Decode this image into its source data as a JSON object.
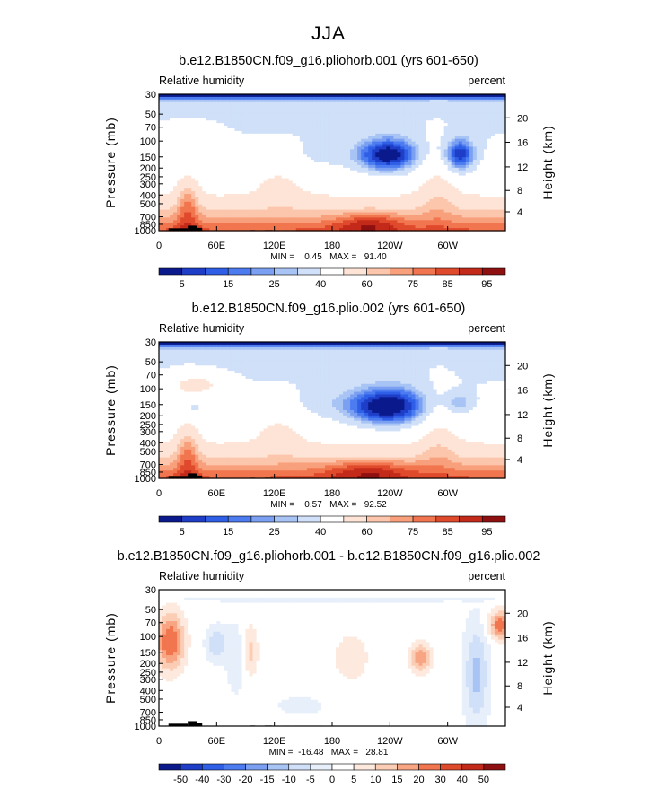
{
  "figure_title": "JJA",
  "palettes": {
    "rh": [
      "#0a1a8c",
      "#1e3ec8",
      "#2f5fe6",
      "#4c7cf0",
      "#7ba0f2",
      "#a8c4f5",
      "#cfe0f8",
      "#ffffff",
      "#fde4d6",
      "#fbc6ab",
      "#f8a07c",
      "#f1764f",
      "#e04a2c",
      "#c42a1a",
      "#8f1010"
    ],
    "diff": [
      "#0a1a8c",
      "#1e3ec8",
      "#2f5fe6",
      "#4c7cf0",
      "#7ba0f2",
      "#a8c4f5",
      "#cfe0f8",
      "#e7effb",
      "#ffffff",
      "#fde9de",
      "#fbcdb4",
      "#f8a583",
      "#f1764f",
      "#e04a2c",
      "#c42a1a",
      "#8f1010"
    ]
  },
  "chart_data": [
    {
      "type": "heatmap",
      "title": "b.e12.B1850CN.f09_g16.pliohorb.001 (yrs 601-650)",
      "left_label": "Relative humidity",
      "right_label": "percent",
      "ylabel": "Pressure (mb)",
      "ylabel_right": "Height (km)",
      "x_ticks": [
        "0",
        "60E",
        "120E",
        "180",
        "120W",
        "60W"
      ],
      "y_ticks": [
        "30",
        "50",
        "70",
        "100",
        "150",
        "200",
        "250",
        "300",
        "400",
        "500",
        "700",
        "850",
        "1000"
      ],
      "y_ticks_right": [
        "20",
        "16",
        "12",
        "8",
        "4"
      ],
      "stats": "MIN =    0.45   MAX =   91.40",
      "colorbar_labels": [
        "5",
        "15",
        "25",
        "40",
        "60",
        "75",
        "85",
        "95"
      ],
      "palette": "rh",
      "field": "rh1"
    },
    {
      "type": "heatmap",
      "title": "b.e12.B1850CN.f09_g16.plio.002 (yrs 601-650)",
      "left_label": "Relative humidity",
      "right_label": "percent",
      "ylabel": "Pressure (mb)",
      "ylabel_right": "Height (km)",
      "x_ticks": [
        "0",
        "60E",
        "120E",
        "180",
        "120W",
        "60W"
      ],
      "y_ticks": [
        "30",
        "50",
        "70",
        "100",
        "150",
        "200",
        "250",
        "300",
        "400",
        "500",
        "700",
        "850",
        "1000"
      ],
      "y_ticks_right": [
        "20",
        "16",
        "12",
        "8",
        "4"
      ],
      "stats": "MIN =    0.57   MAX =   92.52",
      "colorbar_labels": [
        "5",
        "15",
        "25",
        "40",
        "60",
        "75",
        "85",
        "95"
      ],
      "palette": "rh",
      "field": "rh2"
    },
    {
      "type": "heatmap",
      "title": "b.e12.B1850CN.f09_g16.pliohorb.001 - b.e12.B1850CN.f09_g16.plio.002",
      "left_label": "Relative humidity",
      "right_label": "percent",
      "ylabel": "Pressure (mb)",
      "ylabel_right": "Height (km)",
      "x_ticks": [
        "0",
        "60E",
        "120E",
        "180",
        "120W",
        "60W"
      ],
      "y_ticks": [
        "30",
        "50",
        "70",
        "100",
        "150",
        "200",
        "250",
        "300",
        "400",
        "500",
        "700",
        "850",
        "1000"
      ],
      "y_ticks_right": [
        "20",
        "16",
        "12",
        "8",
        "4"
      ],
      "stats": "MIN =  -16.48   MAX =   28.81",
      "colorbar_labels": [
        "-50",
        "-40",
        "-30",
        "-20",
        "-15",
        "-10",
        "-5",
        "0",
        "5",
        "10",
        "15",
        "20",
        "30",
        "40",
        "50"
      ],
      "palette": "diff",
      "field": "diff"
    }
  ]
}
